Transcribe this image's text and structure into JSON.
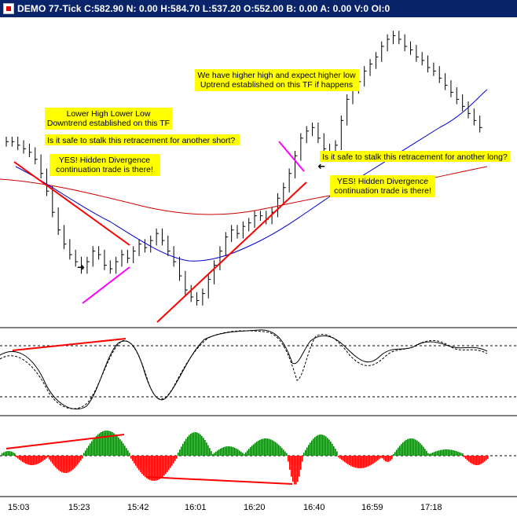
{
  "window": {
    "title": "DEMO 77-Tick C:582.90 N: 0.00 H:584.70 L:537.20 O:552.00 B: 0.00 A: 0.00 V:0 OI:0"
  },
  "annotations": {
    "lower_high": [
      "Lower High Lower Low",
      "Downtrend established on this TF"
    ],
    "safe_short": [
      "Is it safe to stalk this retracement for another short?"
    ],
    "yes_short": [
      "YES!  Hidden Divergence",
      "continuation trade is there!"
    ],
    "higher_high": [
      "We have higher high and expect higher low",
      "Uptrend established on this TF if happens"
    ],
    "safe_long": [
      "Is it safe to stalk this retracement for another long?"
    ],
    "yes_long": [
      "YES!  Hidden Divergence",
      "continuation trade is there!"
    ]
  },
  "time_axis": {
    "labels": [
      "15:03",
      "15:23",
      "15:42",
      "16:01",
      "16:20",
      "16:40",
      "16:59",
      "17:18"
    ]
  },
  "colors": {
    "title_bar": "#0a246a",
    "note_bg": "#ffff00",
    "trend_line": "#ff0000",
    "divergence_line": "#ff00ff",
    "ma_slow": "#cc0000",
    "ma_fast": "#0000cc",
    "hist_up": "#008000",
    "hist_down": "#ff0000"
  },
  "chart_data": {
    "type": "line",
    "price_closes": [
      582,
      582,
      581,
      580,
      579,
      577,
      573,
      568,
      562,
      557,
      553,
      550,
      548,
      546,
      548,
      551,
      550,
      547,
      546,
      548,
      550,
      549,
      551,
      553,
      552,
      554,
      556,
      554,
      551,
      548,
      544,
      540,
      538,
      537,
      539,
      543,
      547,
      551,
      555,
      557,
      556,
      558,
      559,
      561,
      561,
      560,
      562,
      566,
      569,
      573,
      578,
      583,
      585,
      586,
      583,
      580,
      578,
      581,
      588,
      594,
      597,
      599,
      602,
      604,
      606,
      609,
      611,
      612,
      611,
      609,
      608,
      606,
      605,
      603,
      602,
      600,
      598,
      596,
      594,
      592,
      590,
      588,
      586
    ],
    "note": ""
  }
}
